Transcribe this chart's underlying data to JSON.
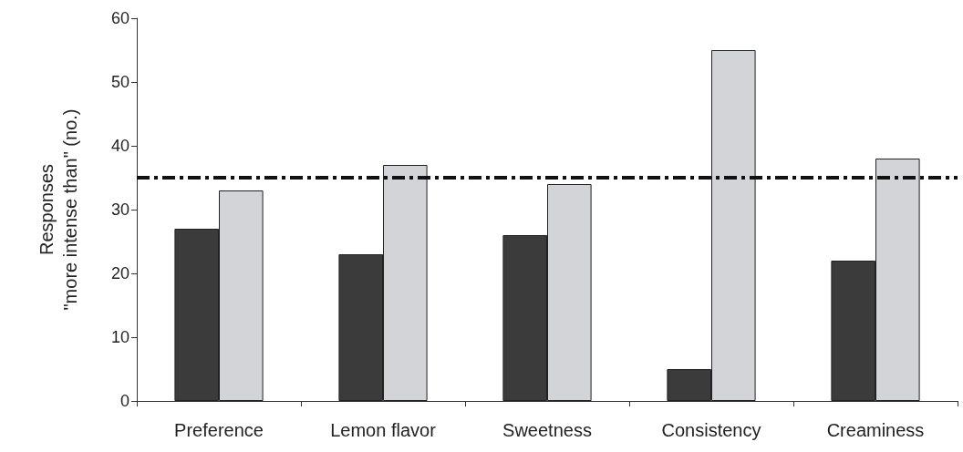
{
  "chart_data": {
    "type": "bar",
    "ylabel": "Responses\n\"more intense than\" (no.)",
    "categories": [
      "Preference",
      "Lemon flavor",
      "Sweetness",
      "Consistency",
      "Creaminess"
    ],
    "series": [
      {
        "color": "#3b3b3b",
        "values": [
          27,
          23,
          26,
          5,
          22
        ]
      },
      {
        "color": "#d2d4d7",
        "values": [
          33,
          37,
          34,
          55,
          38
        ]
      }
    ],
    "ylim": [
      0,
      60
    ],
    "yticks": [
      0,
      10,
      20,
      30,
      40,
      50,
      60
    ],
    "grid": false,
    "ref_lines": [
      {
        "axis": "y",
        "value": 35,
        "color": "#111111",
        "line_style": "dashed"
      }
    ]
  }
}
